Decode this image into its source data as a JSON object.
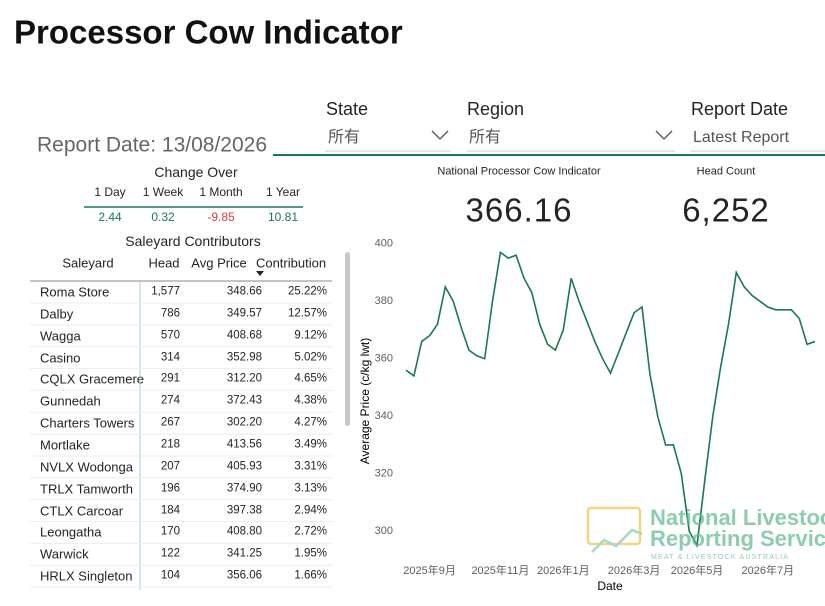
{
  "header": {
    "title": "Processor Cow Indicator",
    "report_date": "Report Date: 13/08/2026"
  },
  "filters": [
    {
      "label": "State",
      "value": "所有"
    },
    {
      "label": "Region",
      "value": "所有"
    },
    {
      "label": "Report Date",
      "value": "Latest Report"
    }
  ],
  "change_over": {
    "title": "Change Over",
    "columns": [
      "1 Day",
      "1 Week",
      "1 Month",
      "1 Year"
    ],
    "values": [
      2.44,
      0.32,
      -9.85,
      10.81
    ]
  },
  "saleyards": {
    "title": "Saleyard Contributors",
    "columns": [
      "Saleyard",
      "Head",
      "Avg Price",
      "Contribution"
    ],
    "rows": [
      [
        "Roma Store",
        "1,577",
        "348.66",
        "25.22%"
      ],
      [
        "Dalby",
        "786",
        "349.57",
        "12.57%"
      ],
      [
        "Wagga",
        "570",
        "408.68",
        "9.12%"
      ],
      [
        "Casino",
        "314",
        "352.98",
        "5.02%"
      ],
      [
        "CQLX Gracemere",
        "291",
        "312.20",
        "4.65%"
      ],
      [
        "Gunnedah",
        "274",
        "372.43",
        "4.38%"
      ],
      [
        "Charters Towers",
        "267",
        "302.20",
        "4.27%"
      ],
      [
        "Mortlake",
        "218",
        "413.56",
        "3.49%"
      ],
      [
        "NVLX Wodonga",
        "207",
        "405.93",
        "3.31%"
      ],
      [
        "TRLX Tamworth",
        "196",
        "374.90",
        "3.13%"
      ],
      [
        "CTLX Carcoar",
        "184",
        "397.38",
        "2.94%"
      ],
      [
        "Leongatha",
        "170",
        "408.80",
        "2.72%"
      ],
      [
        "Warwick",
        "122",
        "341.25",
        "1.95%"
      ],
      [
        "HRLX Singleton",
        "104",
        "356.06",
        "1.66%"
      ]
    ]
  },
  "kpis": [
    {
      "label": "National Processor Cow Indicator",
      "value": 366.16
    },
    {
      "label": "Head Count",
      "value": "6,252"
    }
  ],
  "chart_data": {
    "type": "line",
    "x_label": "Date",
    "y_label": "Average Price (c/kg lwt)",
    "color": "#1a7a4e",
    "categories": [
      null,
      null,
      null,
      "2025年9月",
      null,
      null,
      null,
      null,
      null,
      null,
      null,
      null,
      "2025年11月",
      null,
      null,
      null,
      null,
      null,
      null,
      null,
      "2026年1月",
      null,
      null,
      null,
      null,
      null,
      null,
      null,
      null,
      "2026年3月",
      null,
      null,
      null,
      null,
      null,
      null,
      null,
      "2026年5月",
      null,
      null,
      null,
      null,
      null,
      null,
      null,
      null,
      "2026年7月",
      null,
      null,
      null,
      null,
      null,
      null
    ],
    "values": [
      356,
      354,
      366,
      368,
      372,
      385,
      380,
      371,
      363,
      361,
      360,
      380,
      397,
      395,
      396,
      388,
      383,
      372,
      365,
      363,
      370,
      388,
      380,
      373,
      366,
      360,
      355,
      362,
      369,
      376,
      378,
      355,
      340,
      330,
      330,
      320,
      300,
      295,
      318,
      340,
      357,
      372,
      390,
      385,
      382,
      380,
      378,
      377,
      377,
      377,
      374,
      365,
      366
    ],
    "ylim": [
      283,
      402
    ],
    "yticks": [
      300,
      320,
      340,
      360,
      380,
      400
    ]
  },
  "logo": {
    "line1": "National Livestock",
    "line2": "Reporting Services",
    "tagline": "MEAT & LIVESTOCK AUSTRALIA"
  }
}
